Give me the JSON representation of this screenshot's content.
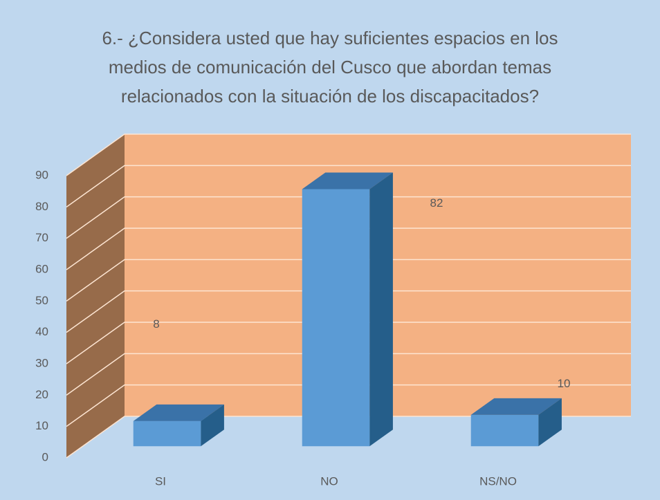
{
  "chart_data": {
    "type": "bar3d",
    "title": "6.- ¿Considera usted que hay suficientes espacios en los medios de comunicación del Cusco que abordan temas relacionados con la situación de los discapacitados?",
    "categories": [
      "SI",
      "NO",
      "NS/NO"
    ],
    "values": [
      8,
      82,
      10
    ],
    "color": "#5b9bd5",
    "ylim": [
      0,
      90
    ],
    "yticks": [
      0,
      10,
      20,
      30,
      40,
      50,
      60,
      70,
      80,
      90
    ],
    "grid": true
  }
}
